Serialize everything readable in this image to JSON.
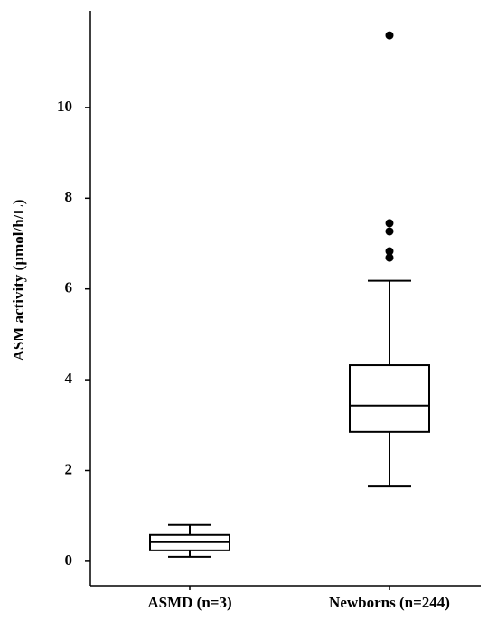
{
  "chart_data": {
    "type": "box",
    "y_label": "ASM activity (µmol/h/L)",
    "categories": [
      "ASMD (n=3)",
      "Newborns (n=244)"
    ],
    "boxes": [
      {
        "min": 0.1,
        "q1": 0.24,
        "median": 0.42,
        "q3": 0.58,
        "max": 0.8,
        "outliers": []
      },
      {
        "min": 1.65,
        "q1": 2.85,
        "median": 3.43,
        "q3": 4.32,
        "max": 6.18,
        "outliers": [
          6.69,
          6.83,
          7.27,
          7.45,
          11.59
        ]
      }
    ],
    "color": "#000000",
    "ylim": [
      -0.54,
      12.13
    ],
    "yticks": [
      0,
      2,
      4,
      6,
      8,
      10
    ],
    "grid": false
  }
}
